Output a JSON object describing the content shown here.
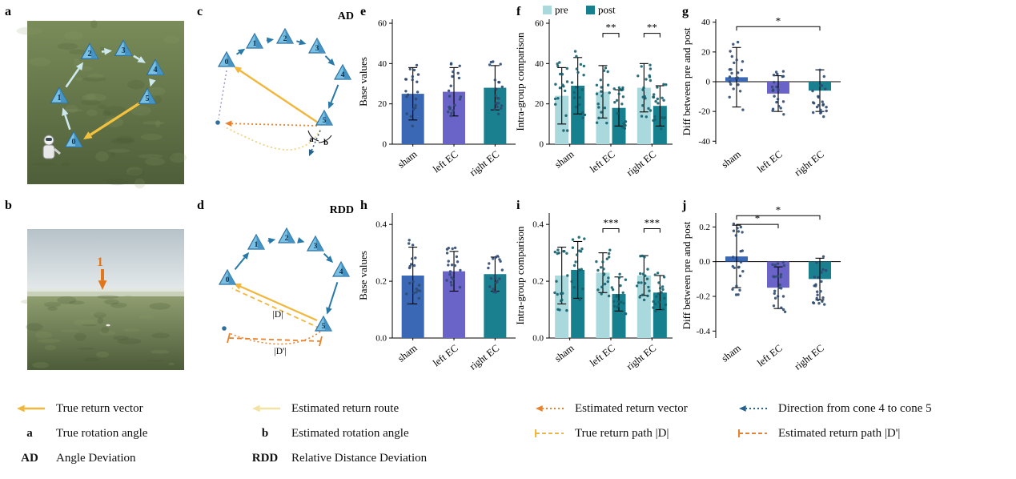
{
  "figure": {
    "panel_labels": {
      "a": "a",
      "b": "b",
      "c": "c",
      "d": "d",
      "e": "e",
      "f": "f",
      "g": "g",
      "h": "h",
      "i": "i",
      "j": "j"
    }
  },
  "scene_a": {
    "cone_labels": [
      "0",
      "1",
      "2",
      "3",
      "4",
      "5"
    ]
  },
  "scene_b": {
    "marker_label": "1"
  },
  "diagram_ad": {
    "title": "AD",
    "cone_labels": [
      "0",
      "1",
      "2",
      "3",
      "4",
      "5"
    ],
    "angle_a_label": "a",
    "angle_b_label": "b"
  },
  "diagram_rdd": {
    "title": "RDD",
    "cone_labels": [
      "0",
      "1",
      "2",
      "3",
      "4",
      "5"
    ],
    "true_path_label": "|D|",
    "estimated_path_label": "|D'|"
  },
  "chart_data": [
    {
      "id": "e",
      "type": "bar",
      "title": "",
      "xlabel": "",
      "ylabel": "Base values",
      "categories": [
        "sham",
        "left EC",
        "right EC"
      ],
      "values": [
        25,
        26,
        28
      ],
      "errors": [
        13,
        12,
        11
      ],
      "bar_colors": [
        "#3A68B4",
        "#6A63C8",
        "#1A7F8E"
      ],
      "dot_color": "#2F4A72",
      "ylim": [
        0,
        62
      ],
      "ytick_values": [
        0,
        20,
        40,
        60
      ],
      "ytick_labels": [
        "0",
        "20",
        "40",
        "60"
      ],
      "points_per_bar": 20
    },
    {
      "id": "f",
      "type": "grouped-bar",
      "title": "",
      "xlabel": "",
      "ylabel": "Intra-group comparison",
      "categories": [
        "sham",
        "left EC",
        "right EC"
      ],
      "series": [
        {
          "name": "pre",
          "color": "#A9D8DD",
          "values": [
            24,
            26,
            28
          ],
          "errors": [
            14,
            13,
            12
          ]
        },
        {
          "name": "post",
          "color": "#17808E",
          "values": [
            29,
            18,
            19
          ],
          "errors": [
            14,
            9,
            10
          ]
        }
      ],
      "dot_color": "#15616E",
      "ylim": [
        0,
        62
      ],
      "ytick_values": [
        0,
        20,
        40,
        60
      ],
      "ytick_labels": [
        "0",
        "20",
        "40",
        "60"
      ],
      "show_series_legend": true,
      "significance": [
        {
          "type": "pair",
          "group": 1,
          "label": "**",
          "y_value": 55
        },
        {
          "type": "pair",
          "group": 2,
          "label": "**",
          "y_value": 55
        }
      ],
      "points_per_bar": 18
    },
    {
      "id": "g",
      "type": "bar",
      "title": "",
      "xlabel": "",
      "ylabel": "Diff between pre and post",
      "categories": [
        "sham",
        "left EC",
        "right EC"
      ],
      "values": [
        3,
        -8,
        -6
      ],
      "errors": [
        20,
        12,
        14
      ],
      "bar_colors": [
        "#3A68B4",
        "#6A63C8",
        "#1A7F8E"
      ],
      "dot_color": "#2F4A72",
      "ylim": [
        -42,
        42
      ],
      "ytick_values": [
        -40,
        -20,
        0,
        20,
        40
      ],
      "ytick_labels": [
        "-40",
        "-20",
        "0",
        "20",
        "40"
      ],
      "significance": [
        {
          "type": "span",
          "from": 0,
          "to": 2,
          "label": "*",
          "y_value": 37
        }
      ],
      "points_per_bar": 22
    },
    {
      "id": "h",
      "type": "bar",
      "title": "",
      "xlabel": "",
      "ylabel": "Base values",
      "categories": [
        "sham",
        "left EC",
        "right EC"
      ],
      "values": [
        0.22,
        0.235,
        0.225
      ],
      "errors": [
        0.1,
        0.07,
        0.06
      ],
      "bar_colors": [
        "#3A68B4",
        "#6A63C8",
        "#1A7F8E"
      ],
      "dot_color": "#2F4A72",
      "ylim": [
        0,
        0.44
      ],
      "ytick_values": [
        0,
        0.2,
        0.4
      ],
      "ytick_labels": [
        "0.0",
        "0.2",
        "0.4"
      ],
      "points_per_bar": 20
    },
    {
      "id": "i",
      "type": "grouped-bar",
      "title": "",
      "xlabel": "",
      "ylabel": "Intra-group comparison",
      "categories": [
        "sham",
        "left EC",
        "right EC"
      ],
      "series": [
        {
          "name": "pre",
          "color": "#A9D8DD",
          "values": [
            0.22,
            0.23,
            0.22
          ],
          "errors": [
            0.1,
            0.07,
            0.07
          ]
        },
        {
          "name": "post",
          "color": "#17808E",
          "values": [
            0.24,
            0.155,
            0.16
          ],
          "errors": [
            0.1,
            0.06,
            0.06
          ]
        }
      ],
      "dot_color": "#15616E",
      "ylim": [
        0,
        0.44
      ],
      "ytick_values": [
        0,
        0.2,
        0.4
      ],
      "ytick_labels": [
        "0.0",
        "0.2",
        "0.4"
      ],
      "show_series_legend": false,
      "significance": [
        {
          "type": "pair",
          "group": 1,
          "label": "***",
          "y_value": 0.385
        },
        {
          "type": "pair",
          "group": 2,
          "label": "***",
          "y_value": 0.385
        }
      ],
      "points_per_bar": 18
    },
    {
      "id": "j",
      "type": "bar",
      "title": "",
      "xlabel": "",
      "ylabel": "Diff between pre and post",
      "categories": [
        "sham",
        "left EC",
        "right EC"
      ],
      "values": [
        0.03,
        -0.15,
        -0.1
      ],
      "errors": [
        0.18,
        0.12,
        0.12
      ],
      "bar_colors": [
        "#3A68B4",
        "#6A63C8",
        "#1A7F8E"
      ],
      "dot_color": "#2F4A72",
      "ylim": [
        -0.44,
        0.28
      ],
      "ytick_values": [
        0.2,
        0,
        -0.2,
        -0.4
      ],
      "ytick_labels": [
        "0.2",
        "0.0",
        "-0.2",
        "-0.4"
      ],
      "significance": [
        {
          "type": "span",
          "from": 0,
          "to": 1,
          "label": "*",
          "y_value": 0.215
        },
        {
          "type": "span",
          "from": 0,
          "to": 2,
          "label": "*",
          "y_value": 0.265
        }
      ],
      "points_per_bar": 22
    }
  ],
  "legend": {
    "items": [
      {
        "icon": "arrow-solid",
        "color": "#F2B63B",
        "label": "True return vector",
        "col": 1,
        "row": 1
      },
      {
        "icon": "arrow-solid",
        "color": "#F3E3A2",
        "label": "Estimated return route",
        "col": 2,
        "row": 1
      },
      {
        "icon": "arrow-dotted",
        "color": "#E8822D",
        "label": "Estimated return vector",
        "col": 3,
        "row": 1
      },
      {
        "icon": "arrow-dotted",
        "color": "#27628F",
        "label": "Direction from cone 4 to cone 5",
        "col": 4,
        "row": 1
      },
      {
        "icon": "symbol",
        "symbol": "a",
        "label": "True rotation angle",
        "col": 1,
        "row": 2
      },
      {
        "icon": "symbol",
        "symbol": "b",
        "label": "Estimated rotation angle",
        "col": 2,
        "row": 2
      },
      {
        "icon": "dashed-ticks",
        "color": "#F2B63B",
        "label": "True return path |D|",
        "col": 3,
        "row": 2
      },
      {
        "icon": "dashed-ticks",
        "color": "#E8822D",
        "label": "Estimated return path |D'|",
        "col": 4,
        "row": 2
      },
      {
        "icon": "symbol",
        "symbol": "AD",
        "label": "Angle Deviation",
        "col": 1,
        "row": 3
      },
      {
        "icon": "symbol",
        "symbol": "RDD",
        "label": "Relative Distance Deviation",
        "col": 2,
        "row": 3
      }
    ]
  }
}
